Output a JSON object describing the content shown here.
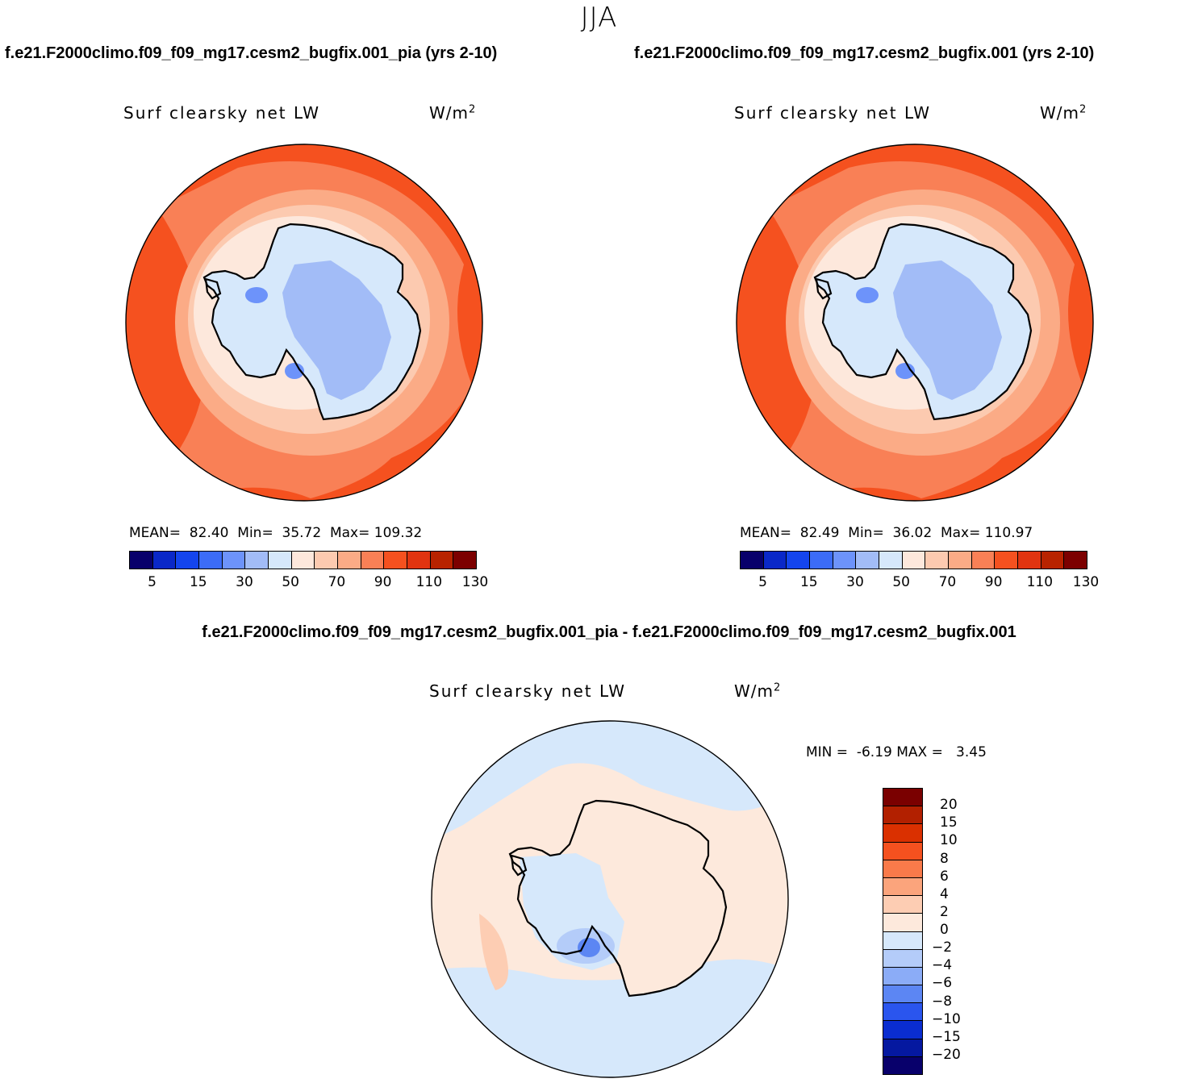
{
  "season": "JJA",
  "panels": [
    {
      "title": "f.e21.F2000climo.f09_f09_mg17.cesm2_bugfix.001_pia (yrs 2-10)",
      "variable": "Surf clearsky net LW",
      "units_base": "W/m",
      "units_exp": "2",
      "stats": "MEAN=  82.40  Min=  35.72  Max= 109.32"
    },
    {
      "title": "f.e21.F2000climo.f09_f09_mg17.cesm2_bugfix.001 (yrs 2-10)",
      "variable": "Surf clearsky net LW",
      "units_base": "W/m",
      "units_exp": "2",
      "stats": "MEAN=  82.49  Min=  36.02  Max= 110.97"
    }
  ],
  "difference": {
    "title": "f.e21.F2000climo.f09_f09_mg17.cesm2_bugfix.001_pia - f.e21.F2000climo.f09_f09_mg17.cesm2_bugfix.001",
    "variable": "Surf clearsky net LW",
    "units_base": "W/m",
    "units_exp": "2",
    "stats": "MIN =  -6.19 MAX =   3.45"
  },
  "abs_colorbar": {
    "colors": [
      "#08006b",
      "#0a28c8",
      "#1445ee",
      "#3c6cf7",
      "#6d93fa",
      "#a2bcf7",
      "#d6e8fb",
      "#fde8dc",
      "#fccab0",
      "#fbab86",
      "#f98056",
      "#f5511f",
      "#e13410",
      "#b82300",
      "#7c0000"
    ],
    "labels": [
      "5",
      "15",
      "30",
      "50",
      "70",
      "90",
      "110",
      "130"
    ]
  },
  "diff_colorbar": {
    "colors": [
      "#7a0000",
      "#b22000",
      "#da3000",
      "#f5511f",
      "#f97a4a",
      "#fba47c",
      "#fdcdb3",
      "#fde9dc",
      "#d6e8fb",
      "#b4ccf9",
      "#8bacf7",
      "#5c86f3",
      "#2a55ee",
      "#0a2dd0",
      "#0518a0",
      "#08006b"
    ],
    "labels": [
      "20",
      "15",
      "10",
      "8",
      "6",
      "4",
      "2",
      "0",
      "−2",
      "−4",
      "−6",
      "−8",
      "−10",
      "−15",
      "−20"
    ]
  },
  "map_colors": {
    "ocean_far": "#f5511f",
    "ocean_mid": "#f98056",
    "ocean_near": "#fbab86",
    "ice_edge": "#fccab0",
    "shelf": "#fde8dc",
    "land_low": "#d6e8fb",
    "land_mid": "#a2bcf7",
    "land_min": "#6d93fa",
    "diff_pos": "#fde9dc",
    "diff_pos2": "#fdcdb3",
    "diff_neg": "#d6e8fb",
    "diff_neg2": "#b4ccf9",
    "diff_neg3": "#5c86f3"
  }
}
